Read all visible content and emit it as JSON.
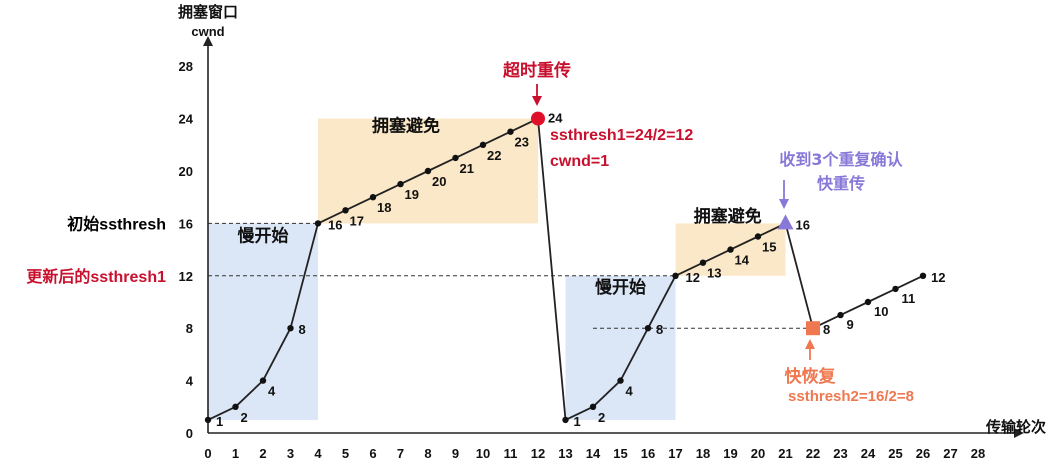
{
  "chart_data": {
    "type": "line",
    "ylabel_cn": "拥塞窗口",
    "ylabel_en": "cwnd",
    "xlabel": "传输轮次",
    "x_ticks": [
      0,
      1,
      2,
      3,
      4,
      5,
      6,
      7,
      8,
      9,
      10,
      11,
      12,
      13,
      14,
      15,
      16,
      17,
      18,
      19,
      20,
      21,
      22,
      23,
      24,
      25,
      26,
      27,
      28
    ],
    "y_ticks": [
      0,
      4,
      8,
      12,
      16,
      20,
      24,
      28
    ],
    "xlim": [
      0,
      28
    ],
    "ylim": [
      0,
      28
    ],
    "grid": false,
    "series": [
      {
        "x": [
          0,
          1,
          2,
          3,
          4,
          5,
          6,
          7,
          8,
          9,
          10,
          11,
          12,
          13,
          14,
          15,
          16,
          17,
          18,
          19,
          20,
          21,
          22,
          23,
          24,
          25,
          26
        ],
        "y": [
          1,
          2,
          4,
          8,
          16,
          17,
          18,
          19,
          20,
          21,
          22,
          23,
          24,
          1,
          2,
          4,
          8,
          12,
          13,
          14,
          15,
          16,
          8,
          9,
          10,
          11,
          12
        ]
      }
    ],
    "point_labels": [
      "1",
      "2",
      "4",
      "8",
      "16",
      "17",
      "18",
      "19",
      "20",
      "21",
      "22",
      "23",
      "24",
      "1",
      "2",
      "4",
      "8",
      "12",
      "13",
      "14",
      "15",
      "16",
      "8",
      "9",
      "10",
      "11",
      "12"
    ],
    "reference_lines": [
      {
        "y": 16,
        "label": "初始ssthresh",
        "color": "#000000"
      },
      {
        "y": 12,
        "label": "更新后的ssthresh1",
        "color": "#c8102e"
      }
    ],
    "regions": [
      {
        "x0": 0,
        "x1": 4,
        "y0": 1,
        "y1": 16,
        "color": "#dbe6f7",
        "label": "慢开始"
      },
      {
        "x0": 4,
        "x1": 12,
        "y0": 16,
        "y1": 24,
        "color": "#fbe8c8",
        "label": "拥塞避免"
      },
      {
        "x0": 13,
        "x1": 17,
        "y0": 1,
        "y1": 12,
        "color": "#dbe6f7",
        "label": "慢开始"
      },
      {
        "x0": 17,
        "x1": 21,
        "y0": 12,
        "y1": 16,
        "color": "#fbe8c8",
        "label": "拥塞避免"
      }
    ],
    "annotations": {
      "timeout": {
        "title": "超时重传",
        "line1": "ssthresh1=24/2=12",
        "line2": "cwnd=1",
        "color": "#c8102e"
      },
      "dup_ack": {
        "line1": "收到3个重复确认",
        "line2": "快重传",
        "color": "#8878d8"
      },
      "fast_recovery": {
        "title": "快恢复",
        "line1": "ssthresh2=16/2=8",
        "color": "#f07850"
      }
    }
  }
}
